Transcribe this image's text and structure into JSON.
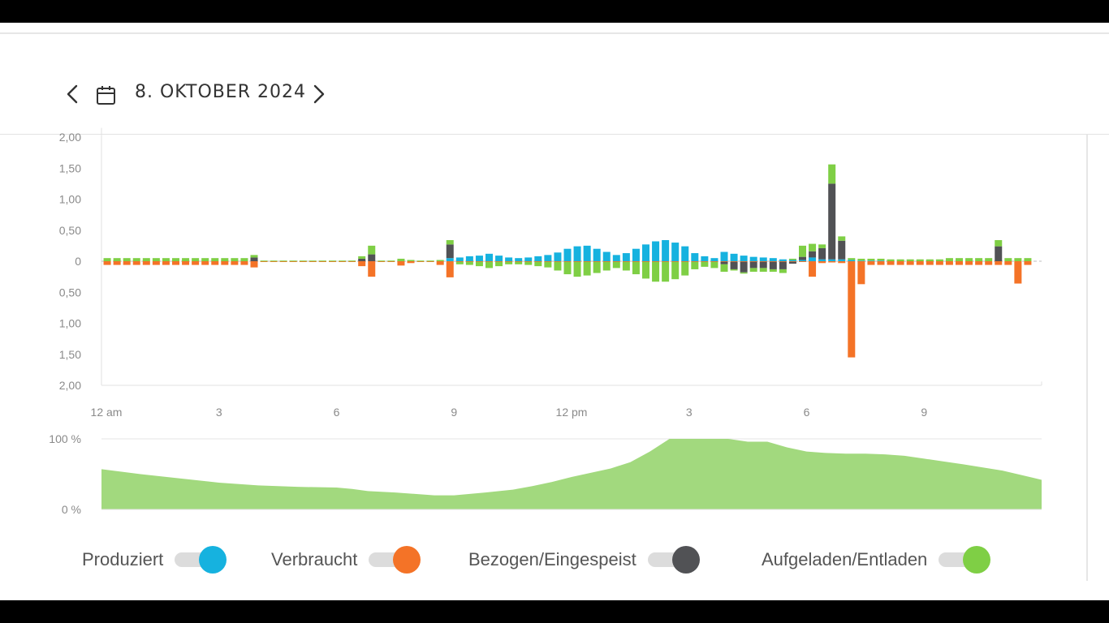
{
  "header": {
    "date": "8. OKTOBER 2024"
  },
  "icons": {
    "prev": "chevron-left-icon",
    "next": "chevron-right-icon",
    "calendar": "calendar-icon"
  },
  "colors": {
    "produced": "#16b2df",
    "consumed": "#f47327",
    "grid": "#515255",
    "battery": "#7fcf45",
    "soc": "#a2d97e"
  },
  "chart_data": [
    {
      "type": "bar",
      "x_ticks": [
        "12 am",
        "3",
        "6",
        "9",
        "12 pm",
        "3",
        "6",
        "9"
      ],
      "y_ticks": [
        "2,00",
        "1,50",
        "1,00",
        "0,50",
        "0",
        "0,50",
        "1,00",
        "1,50",
        "2,00"
      ],
      "ylim": [
        -2,
        2
      ],
      "grid": false,
      "x_hours": [
        0.25,
        0.5,
        0.75,
        1,
        1.25,
        1.5,
        1.75,
        2,
        2.25,
        2.5,
        2.75,
        3,
        3.25,
        3.5,
        3.75,
        4,
        4.25,
        4.5,
        4.75,
        5,
        5.25,
        5.5,
        5.75,
        6,
        6.25,
        6.5,
        6.75,
        7,
        7.25,
        7.5,
        7.75,
        8,
        8.25,
        8.5,
        8.75,
        9,
        9.25,
        9.5,
        9.75,
        10,
        10.25,
        10.5,
        10.75,
        11,
        11.25,
        11.5,
        11.75,
        12,
        12.25,
        12.5,
        12.75,
        13,
        13.25,
        13.5,
        13.75,
        14,
        14.25,
        14.5,
        14.75,
        15,
        15.25,
        15.5,
        15.75,
        16,
        16.25,
        16.5,
        16.75,
        17,
        17.25,
        17.5,
        17.75,
        18,
        18.25,
        18.5,
        18.75,
        19,
        19.25,
        19.5,
        19.75,
        20,
        20.25,
        20.5,
        20.75,
        21,
        21.25,
        21.5,
        21.75,
        22,
        22.25,
        22.5,
        22.75,
        23,
        23.25,
        23.5,
        23.75
      ],
      "series": [
        {
          "name": "Produziert",
          "values": [
            0,
            0,
            0,
            0,
            0,
            0,
            0,
            0,
            0,
            0,
            0,
            0,
            0,
            0,
            0,
            0,
            0,
            0,
            0,
            0,
            0,
            0,
            0,
            0,
            0,
            0,
            0,
            0,
            0,
            0,
            0,
            0,
            0,
            0,
            0,
            0.05,
            0.06,
            0.08,
            0.09,
            0.12,
            0.09,
            0.06,
            0.05,
            0.06,
            0.08,
            0.1,
            0.14,
            0.2,
            0.24,
            0.25,
            0.2,
            0.15,
            0.1,
            0.13,
            0.2,
            0.27,
            0.32,
            0.34,
            0.3,
            0.24,
            0.13,
            0.08,
            0.05,
            0.15,
            0.12,
            0.09,
            0.07,
            0.06,
            0.05,
            0.03,
            0.02,
            0.02,
            0.06,
            0.03,
            0.03,
            0.03,
            0.02,
            0.01,
            0.01,
            0.01,
            0,
            0,
            0,
            0,
            0,
            0,
            0,
            0,
            0,
            0,
            0,
            0,
            0,
            0,
            0
          ]
        },
        {
          "name": "Verbraucht",
          "values": [
            -0.06,
            -0.06,
            -0.06,
            -0.06,
            -0.06,
            -0.06,
            -0.06,
            -0.06,
            -0.06,
            -0.06,
            -0.06,
            -0.06,
            -0.06,
            -0.06,
            -0.06,
            -0.1,
            -0.01,
            -0.01,
            -0.01,
            -0.01,
            -0.01,
            -0.01,
            -0.01,
            -0.01,
            -0.01,
            -0.01,
            -0.08,
            -0.25,
            -0.01,
            -0.01,
            -0.07,
            -0.03,
            -0.01,
            -0.01,
            -0.06,
            -0.26,
            -0.01,
            -0.01,
            -0.01,
            -0.01,
            -0.01,
            -0.01,
            -0.01,
            -0.01,
            -0.01,
            -0.01,
            -0.01,
            -0.01,
            -0.01,
            -0.01,
            -0.01,
            -0.01,
            -0.01,
            -0.01,
            -0.01,
            -0.01,
            -0.01,
            -0.01,
            -0.01,
            -0.01,
            -0.01,
            -0.01,
            -0.01,
            -0.01,
            -0.01,
            -0.01,
            -0.01,
            -0.01,
            -0.01,
            -0.01,
            -0.01,
            -0.01,
            -0.25,
            -0.03,
            -0.02,
            -0.03,
            -1.55,
            -0.37,
            -0.06,
            -0.06,
            -0.06,
            -0.06,
            -0.06,
            -0.06,
            -0.06,
            -0.06,
            -0.06,
            -0.06,
            -0.06,
            -0.06,
            -0.06,
            -0.06,
            -0.06,
            -0.36,
            -0.06
          ]
        },
        {
          "name": "Bezogen/Eingespeist",
          "values": [
            0,
            0,
            0,
            0,
            0,
            0,
            0,
            0,
            0,
            0,
            0,
            0,
            0,
            0,
            0,
            0.06,
            0,
            0,
            0,
            0,
            0,
            0,
            0,
            0,
            0,
            0,
            0.04,
            0.11,
            0,
            0,
            0,
            0,
            0,
            0,
            0,
            0.22,
            0,
            0,
            0,
            0,
            0,
            0,
            0,
            0,
            0,
            0,
            0,
            0,
            0,
            0,
            0,
            0,
            0,
            0,
            0,
            0,
            0,
            0,
            0,
            0,
            0,
            0,
            0,
            -0.04,
            -0.12,
            -0.17,
            -0.1,
            -0.1,
            -0.12,
            -0.12,
            -0.03,
            0.05,
            0.1,
            0.18,
            1.22,
            0.3,
            0,
            0,
            0,
            0,
            0,
            0,
            0,
            0,
            0,
            0,
            0,
            0,
            0,
            0,
            0,
            0.24,
            0,
            0,
            0
          ]
        },
        {
          "name": "Aufgeladen/Entladen",
          "values": [
            0.05,
            0.05,
            0.05,
            0.05,
            0.05,
            0.05,
            0.05,
            0.05,
            0.05,
            0.05,
            0.05,
            0.05,
            0.05,
            0.05,
            0.05,
            0.04,
            0.01,
            0.01,
            0.01,
            0.01,
            0.01,
            0.01,
            0.01,
            0.01,
            0.01,
            0.01,
            0.04,
            0.14,
            0.01,
            0.01,
            0.04,
            0.02,
            0.01,
            0.01,
            0.02,
            0.07,
            -0.04,
            -0.05,
            -0.07,
            -0.1,
            -0.07,
            -0.04,
            -0.04,
            -0.05,
            -0.07,
            -0.09,
            -0.14,
            -0.2,
            -0.24,
            -0.22,
            -0.18,
            -0.14,
            -0.1,
            -0.14,
            -0.2,
            -0.27,
            -0.32,
            -0.32,
            -0.28,
            -0.22,
            -0.12,
            -0.08,
            -0.1,
            -0.12,
            -0.02,
            -0.02,
            -0.06,
            -0.06,
            -0.04,
            -0.06,
            0.02,
            0.18,
            0.12,
            0.06,
            0.31,
            0.07,
            0.03,
            0.03,
            0.03,
            0.03,
            0.03,
            0.03,
            0.03,
            0.03,
            0.03,
            0.03,
            0.05,
            0.05,
            0.05,
            0.05,
            0.05,
            0.1,
            0.05,
            0.05,
            0.05
          ]
        }
      ]
    },
    {
      "type": "area",
      "y_ticks": [
        "100 %",
        "0 %"
      ],
      "ylim": [
        0,
        100
      ],
      "series": [
        {
          "name": "Aufgeladen/Entladen",
          "x": [
            0,
            1,
            2,
            3,
            4,
            5,
            6,
            6.4,
            6.8,
            7.5,
            8.5,
            9,
            9.8,
            10.5,
            11,
            11.5,
            12,
            12.5,
            13,
            13.5,
            14,
            14.5,
            15,
            15.5,
            16,
            16.5,
            17,
            17.5,
            18,
            18.5,
            19,
            19.5,
            20,
            20.5,
            21,
            21.5,
            22,
            23,
            24
          ],
          "values": [
            57,
            50,
            44,
            38,
            34,
            32,
            31,
            29,
            26,
            24,
            20,
            20,
            24,
            28,
            33,
            39,
            46,
            52,
            58,
            67,
            82,
            100,
            100,
            100,
            100,
            96,
            96,
            88,
            82,
            80,
            79,
            79,
            78,
            76,
            72,
            68,
            64,
            55,
            42
          ]
        }
      ]
    }
  ],
  "legend": [
    {
      "label": "Produziert",
      "color": "#16b2df"
    },
    {
      "label": "Verbraucht",
      "color": "#f47327"
    },
    {
      "label": "Bezogen/Eingespeist",
      "color": "#515255"
    },
    {
      "label": "Aufgeladen/Entladen",
      "color": "#7fcf45"
    }
  ]
}
